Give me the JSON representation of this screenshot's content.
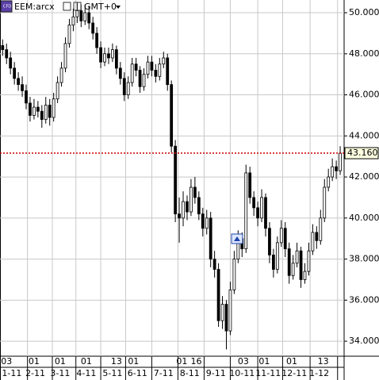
{
  "chart_data": {
    "type": "candlestick",
    "title": "EEM:arcx",
    "subtitle": "GMT+0",
    "x": [
      0,
      3,
      6,
      9,
      12,
      15,
      18,
      21,
      24,
      27,
      30,
      33,
      36,
      39,
      42,
      45,
      48,
      51,
      54,
      57,
      60,
      63,
      66,
      69,
      72,
      75,
      78,
      81,
      84,
      87,
      90,
      93,
      96,
      99,
      102,
      105,
      108,
      111,
      114,
      117,
      120,
      123,
      126,
      129,
      132,
      135,
      138,
      141,
      144,
      147,
      150,
      153,
      156,
      159,
      162,
      165,
      168,
      171,
      174,
      177,
      180,
      183,
      186,
      189,
      192,
      195,
      198,
      201,
      204,
      207,
      210,
      213,
      216,
      219,
      222,
      225,
      228,
      231,
      234,
      237,
      240,
      243,
      246,
      249,
      252,
      255,
      258
    ],
    "open": [
      48.4,
      48.2,
      47.8,
      47.3,
      46.8,
      46.5,
      46.2,
      45.6,
      45.0,
      45.4,
      45.2,
      44.8,
      45.5,
      44.9,
      45.8,
      46.6,
      47.3,
      48.5,
      49.4,
      49.8,
      50.1,
      49.6,
      50.0,
      49.5,
      49.0,
      48.3,
      47.6,
      48.0,
      47.8,
      48.2,
      47.3,
      46.8,
      46.0,
      46.6,
      47.5,
      47.2,
      46.4,
      47.0,
      47.6,
      47.2,
      46.9,
      47.5,
      47.8,
      46.5,
      43.5,
      40.2,
      40.0,
      40.8,
      40.3,
      41.5,
      41.0,
      40.2,
      39.5,
      40.0,
      38.0,
      37.5,
      35.0,
      35.8,
      34.5,
      36.5,
      38.0,
      39.0,
      38.5,
      42.2,
      41.0,
      40.5,
      40.0,
      41.0,
      39.5,
      38.2,
      37.5,
      38.8,
      39.5,
      38.5,
      37.2,
      37.8,
      38.4,
      37.0,
      37.4,
      38.4,
      39.3,
      38.9,
      40.0,
      41.5,
      42.0,
      42.5,
      42.3
    ],
    "high": [
      48.7,
      48.5,
      48.1,
      47.6,
      47.1,
      46.9,
      46.5,
      45.9,
      45.8,
      45.7,
      45.5,
      45.9,
      45.8,
      46.1,
      46.9,
      47.6,
      48.8,
      49.7,
      50.2,
      50.5,
      50.4,
      50.4,
      50.3,
      49.8,
      49.3,
      48.6,
      48.3,
      48.3,
      48.5,
      48.4,
      47.6,
      47.1,
      46.9,
      47.8,
      47.8,
      47.4,
      47.3,
      47.9,
      47.9,
      47.5,
      47.8,
      48.1,
      48.0,
      46.7,
      43.8,
      41.0,
      41.3,
      41.1,
      41.9,
      42.0,
      41.3,
      40.5,
      40.4,
      40.3,
      38.4,
      37.8,
      36.2,
      36.0,
      36.9,
      38.4,
      39.4,
      39.3,
      42.6,
      42.5,
      41.3,
      40.8,
      41.4,
      41.2,
      39.8,
      38.5,
      39.1,
      39.9,
      39.8,
      38.8,
      38.2,
      38.8,
      38.6,
      37.8,
      38.8,
      39.7,
      39.6,
      40.4,
      41.9,
      42.4,
      42.9,
      42.8,
      43.5
    ],
    "low": [
      47.9,
      47.5,
      47.0,
      46.5,
      46.2,
      45.9,
      45.3,
      44.7,
      44.8,
      44.9,
      44.4,
      44.6,
      44.5,
      44.7,
      45.6,
      46.4,
      47.1,
      48.3,
      49.1,
      49.5,
      49.3,
      49.4,
      49.2,
      48.7,
      48.0,
      47.3,
      47.4,
      47.5,
      47.6,
      47.0,
      46.5,
      45.7,
      45.8,
      46.4,
      46.9,
      46.1,
      46.2,
      46.8,
      46.9,
      46.6,
      46.7,
      47.3,
      46.2,
      43.2,
      39.8,
      38.8,
      39.6,
      39.9,
      40.1,
      40.7,
      39.9,
      39.1,
      39.2,
      37.6,
      37.1,
      34.7,
      34.6,
      33.6,
      34.3,
      36.3,
      37.8,
      38.1,
      38.3,
      40.7,
      40.1,
      39.6,
      39.8,
      39.1,
      37.8,
      37.1,
      37.3,
      38.6,
      38.1,
      36.8,
      37.0,
      37.6,
      36.6,
      36.8,
      37.2,
      38.2,
      38.5,
      38.7,
      39.8,
      41.3,
      41.8,
      41.9,
      42.1
    ],
    "close": [
      48.2,
      47.8,
      47.3,
      46.8,
      46.5,
      46.2,
      45.6,
      45.0,
      45.4,
      45.2,
      44.8,
      45.5,
      44.9,
      45.8,
      46.6,
      47.3,
      48.5,
      49.4,
      49.8,
      50.1,
      49.6,
      50.0,
      49.5,
      49.0,
      48.3,
      47.6,
      48.0,
      47.8,
      48.2,
      47.3,
      46.8,
      46.0,
      46.6,
      47.5,
      47.2,
      46.4,
      47.0,
      47.6,
      47.2,
      46.9,
      47.5,
      47.8,
      46.5,
      43.5,
      40.2,
      40.0,
      40.8,
      40.3,
      41.5,
      41.0,
      40.2,
      39.5,
      40.0,
      38.0,
      37.5,
      35.0,
      35.8,
      34.5,
      36.5,
      38.0,
      39.0,
      38.5,
      42.2,
      41.0,
      40.5,
      40.0,
      41.0,
      39.5,
      38.2,
      37.5,
      38.8,
      39.5,
      38.5,
      37.2,
      37.8,
      38.4,
      37.0,
      37.4,
      38.4,
      39.3,
      38.9,
      40.0,
      41.5,
      42.0,
      42.5,
      42.3,
      43.16
    ],
    "last_price": {
      "value": 43.16,
      "label": "43.160",
      "color": "#cc0000"
    },
    "color_up": "#ffffff",
    "color_down": "#000000",
    "xlim": [
      -2,
      261
    ],
    "ylim": [
      33.27,
      50.62
    ],
    "yticks": [
      {
        "value": 34,
        "label": "34.000"
      },
      {
        "value": 36,
        "label": "36.000"
      },
      {
        "value": 38,
        "label": "38.000"
      },
      {
        "value": 40,
        "label": "40.000"
      },
      {
        "value": 42,
        "label": "42.000"
      },
      {
        "value": 44,
        "label": "44.000"
      },
      {
        "value": 46,
        "label": "46.000"
      },
      {
        "value": 48,
        "label": "48.000"
      },
      {
        "value": 50,
        "label": "50.000"
      }
    ],
    "xgrid": [
      19,
      38,
      56,
      75,
      94,
      114,
      134,
      154,
      174,
      195,
      214,
      235,
      256
    ],
    "xticks_day": [
      {
        "value": 3,
        "label": "03"
      },
      {
        "value": 24,
        "label": "01"
      },
      {
        "value": 44,
        "label": "01"
      },
      {
        "value": 64,
        "label": "01"
      },
      {
        "value": 87,
        "label": "13"
      },
      {
        "value": 100,
        "label": "01"
      },
      {
        "value": 137,
        "label": "01"
      },
      {
        "value": 148,
        "label": "16"
      },
      {
        "value": 184,
        "label": "03"
      },
      {
        "value": 200,
        "label": "01"
      },
      {
        "value": 221,
        "label": "01"
      },
      {
        "value": 245,
        "label": "13"
      }
    ],
    "xticks_month": [
      {
        "value": 7,
        "label": "1-11"
      },
      {
        "value": 25,
        "label": "2-11"
      },
      {
        "value": 44,
        "label": "3-11"
      },
      {
        "value": 64,
        "label": "4-11"
      },
      {
        "value": 84,
        "label": "5-11"
      },
      {
        "value": 103,
        "label": "6-11"
      },
      {
        "value": 123,
        "label": "7-11"
      },
      {
        "value": 143,
        "label": "8-11"
      },
      {
        "value": 163,
        "label": "9-11"
      },
      {
        "value": 183,
        "label": "10-11"
      },
      {
        "value": 203,
        "label": "11-11"
      },
      {
        "value": 223,
        "label": "12-11"
      },
      {
        "value": 242,
        "label": "1-12"
      }
    ],
    "grid": true
  }
}
